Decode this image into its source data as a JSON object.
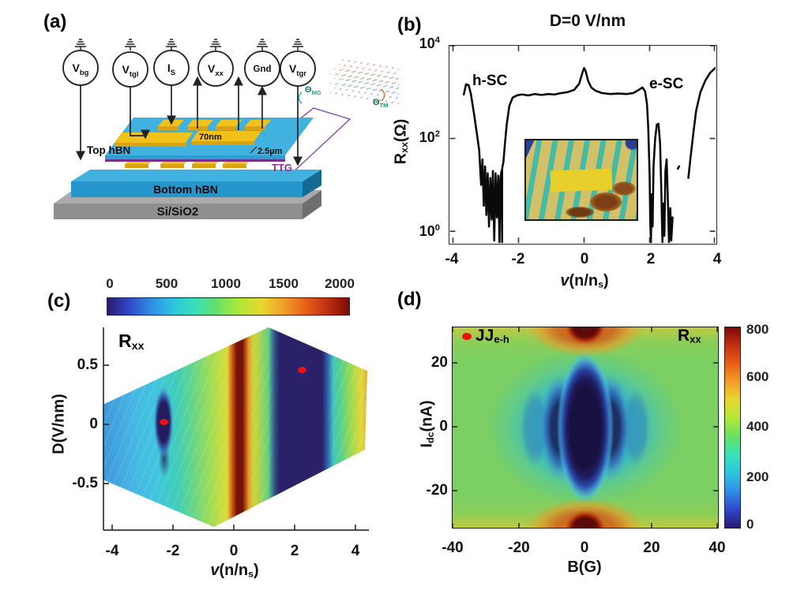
{
  "figure": {
    "panels": {
      "a": {
        "label": "(a)",
        "instruments": [
          {
            "main": "V",
            "sub": "bg"
          },
          {
            "main": "V",
            "sub": "tgl"
          },
          {
            "main": "I",
            "sub": "S"
          },
          {
            "main": "V",
            "sub": "xx"
          },
          {
            "main": "Gnd",
            "sub": ""
          },
          {
            "main": "V",
            "sub": "tgr"
          }
        ],
        "layer_labels": {
          "top_hbn": "Top hBN",
          "bottom_hbn": "Bottom hBN",
          "substrate": "Si/SiO2",
          "ttg": "TTG"
        },
        "annotations": {
          "gate_thickness": "70nm",
          "junction_length": "2.5µm",
          "twist_angles": [
            {
              "main": "Θ",
              "sub": "MG"
            },
            {
              "main": "Θ",
              "sub": "TM"
            }
          ]
        }
      },
      "b": {
        "label": "(b)",
        "title": "D=0 V/nm",
        "ylabel": {
          "main": "R",
          "sub": "xx",
          "unit": "(Ω)"
        },
        "yticks": [
          {
            "base": "10",
            "exp": "4"
          },
          {
            "base": "10",
            "exp": "2"
          },
          {
            "base": "10",
            "exp": "0"
          }
        ],
        "xticks": [
          "-4",
          "-2",
          "0",
          "2",
          "4"
        ],
        "xlabel": {
          "v": "v",
          "rest": "(n/n",
          "sub": "s",
          "post": ")"
        },
        "annotations": {
          "left": "h-SC",
          "right": "e-SC"
        }
      },
      "c": {
        "label": "(c)",
        "colorbar_ticks": [
          "0",
          "500",
          "1000",
          "1500",
          "2000"
        ],
        "map_label": {
          "main": "R",
          "sub": "xx"
        },
        "ylabel": "D(V/nm)",
        "yticks": [
          "0.5",
          "0",
          "-0.5"
        ],
        "xticks": [
          "-4",
          "-2",
          "0",
          "2",
          "4"
        ],
        "xlabel": {
          "v": "v",
          "rest": "(n/n",
          "sub": "s",
          "post": ")"
        }
      },
      "d": {
        "label": "(d)",
        "annotation": {
          "main": "JJ",
          "sub": "e-h"
        },
        "map_label": {
          "main": "R",
          "sub": "xx"
        },
        "ylabel": {
          "main": "I",
          "sub": "dc",
          "unit": "(nA)"
        },
        "yticks": [
          "20",
          "0",
          "-20"
        ],
        "xticks": [
          "-40",
          "-20",
          "0",
          "20",
          "40"
        ],
        "xlabel": "B(G)",
        "colorbar_ticks": [
          "800",
          "600",
          "400",
          "200",
          "0"
        ]
      }
    },
    "colors": {
      "colormap_low": "#2a1a6e",
      "colormap_high": "#7a0a08",
      "marker_red": "#ee1111",
      "hbn_blue": "#2596cc",
      "gold": "#f2c21a",
      "ttg_purple": "#7b2d8b",
      "substrate_gray": "#8f8f8f"
    }
  },
  "chart_data": [
    {
      "panel": "b",
      "type": "line",
      "title": "D=0 V/nm",
      "xlabel": "v(n/n_s)",
      "ylabel": "R_xx (Ω)",
      "x_range": [
        -4,
        4
      ],
      "y_scale": "log10",
      "y_range_log10": [
        -0.25,
        4
      ],
      "xticks": [
        -4,
        -2,
        0,
        2,
        4
      ],
      "yticks_ohm": [
        1,
        100,
        10000
      ],
      "annotations": [
        {
          "text": "h-SC",
          "x": -2.7,
          "log10R": 3.2
        },
        {
          "text": "e-SC",
          "x": 2.6,
          "log10R": 3.1
        }
      ],
      "series": [
        {
          "name": "Rxx_vs_filling",
          "units": [
            "v (n/ns)",
            "log10(Rxx/Ω)"
          ],
          "segments": [
            [
              [
                -3.67,
                2.95
              ],
              [
                -3.6,
                3.17
              ],
              [
                -3.52,
                3.15
              ],
              [
                -3.45,
                2.95
              ],
              [
                -3.35,
                2.5
              ],
              [
                -3.27,
                2.1
              ],
              [
                -3.2,
                1.75
              ],
              [
                -3.14,
                1.0
              ],
              [
                -3.1,
                1.55
              ],
              [
                -3.06,
                0.55
              ],
              [
                -3.02,
                1.4
              ],
              [
                -2.98,
                0.35
              ],
              [
                -2.94,
                1.25
              ],
              [
                -2.9,
                0.1
              ],
              [
                -2.86,
                1.15
              ],
              [
                -2.82,
                0.25
              ],
              [
                -2.78,
                1.3
              ],
              [
                -2.74,
                -0.2
              ],
              [
                -2.7,
                1.25
              ],
              [
                -2.66,
                0.3
              ],
              [
                -2.62,
                1.2
              ],
              [
                -2.58,
                -0.25
              ],
              [
                -2.55,
                1.15
              ],
              [
                -2.52,
                1.3
              ],
              [
                -2.5,
                -0.3
              ],
              [
                -2.5,
                1.35
              ],
              [
                -2.46,
                1.5
              ],
              [
                -2.42,
                1.85
              ],
              [
                -2.36,
                2.3
              ],
              [
                -2.28,
                2.7
              ],
              [
                -2.18,
                2.88
              ],
              [
                -2.05,
                2.93
              ],
              [
                -1.9,
                2.95
              ],
              [
                -1.7,
                2.93
              ],
              [
                -1.5,
                2.96
              ],
              [
                -1.3,
                2.94
              ],
              [
                -1.1,
                2.96
              ],
              [
                -0.9,
                2.95
              ],
              [
                -0.7,
                2.98
              ],
              [
                -0.5,
                3.0
              ],
              [
                -0.3,
                3.05
              ],
              [
                -0.15,
                3.18
              ],
              [
                -0.05,
                3.42
              ],
              [
                0.0,
                3.52
              ],
              [
                0.05,
                3.45
              ],
              [
                0.12,
                3.25
              ],
              [
                0.22,
                3.1
              ],
              [
                0.35,
                3.03
              ],
              [
                0.55,
                2.98
              ],
              [
                0.8,
                2.96
              ],
              [
                1.05,
                2.97
              ],
              [
                1.3,
                2.96
              ],
              [
                1.5,
                2.98
              ],
              [
                1.65,
                3.04
              ],
              [
                1.78,
                3.1
              ],
              [
                1.86,
                3.02
              ],
              [
                1.92,
                2.75
              ],
              [
                1.96,
                2.2
              ],
              [
                2.0,
                1.2
              ],
              [
                2.02,
                0.2
              ],
              [
                2.04,
                -0.3
              ],
              [
                2.06,
                0.8
              ],
              [
                2.09,
                0.1
              ],
              [
                2.12,
                1.4
              ],
              [
                2.17,
                2.0
              ],
              [
                2.22,
                2.3
              ],
              [
                2.27,
                2.32
              ],
              [
                2.32,
                1.9
              ],
              [
                2.36,
                0.8
              ],
              [
                2.39,
                -0.3
              ],
              [
                2.42,
                0.6
              ],
              [
                2.45,
                -0.1
              ],
              [
                2.48,
                1.3
              ],
              [
                2.52,
                1.55
              ],
              [
                2.56,
                0.6
              ],
              [
                2.59,
                -0.3
              ],
              [
                2.63,
                0.5
              ],
              [
                2.66,
                -0.2
              ],
              [
                2.7,
                0.3
              ]
            ],
            [
              [
                2.86,
                1.35
              ],
              [
                2.9,
                1.4
              ]
            ],
            [
              [
                3.18,
                1.15
              ],
              [
                3.25,
                1.6
              ],
              [
                3.33,
                2.1
              ],
              [
                3.42,
                2.6
              ],
              [
                3.55,
                3.0
              ],
              [
                3.7,
                3.25
              ],
              [
                3.85,
                3.42
              ],
              [
                3.97,
                3.5
              ],
              [
                4.0,
                3.52
              ]
            ]
          ]
        }
      ]
    },
    {
      "panel": "c",
      "type": "heatmap",
      "quantity": "R_xx (Ω)",
      "xlabel": "v(n/n_s)",
      "ylabel": "D (V/nm)",
      "x_range": [
        -4.3,
        4.4
      ],
      "y_range": [
        -0.85,
        0.8
      ],
      "xticks": [
        -4,
        -2,
        0,
        2,
        4
      ],
      "yticks": [
        0.5,
        0,
        -0.5
      ],
      "colorbar": {
        "orientation": "horizontal",
        "range": [
          0,
          2000
        ],
        "ticks": [
          0,
          500,
          1000,
          1500,
          2000
        ]
      },
      "data_region": "hexagonal composite of two gate-scan parallelograms",
      "features": [
        {
          "desc": "high-resistance band ~2000 Ω (dark red) at charge neutrality",
          "v": 0
        },
        {
          "desc": "electron-side superconducting dome, near-zero R (dark navy band)",
          "v_range": [
            1.3,
            2.8
          ]
        },
        {
          "desc": "hole-side superconducting pocket, near-zero R (dark navy ellipse)",
          "v": -2.3,
          "D_range": [
            -0.35,
            0.3
          ]
        },
        {
          "desc": "cyan-blue background ~200-400 Ω on far hole side"
        },
        {
          "desc": "green-yellow background ~500-1200 Ω between features"
        }
      ],
      "markers": [
        {
          "shape": "dot",
          "color": "red",
          "v": -2.3,
          "D": 0.05
        },
        {
          "shape": "dot",
          "color": "red",
          "v": 2.25,
          "D": 0.48
        }
      ]
    },
    {
      "panel": "d",
      "type": "heatmap",
      "quantity": "R_xx (Ω)",
      "xlabel": "B (G)",
      "ylabel": "I_dc (nA)",
      "x_range": [
        -40,
        40
      ],
      "y_range": [
        -31,
        31
      ],
      "xticks": [
        -40,
        -20,
        0,
        20,
        40
      ],
      "yticks": [
        20,
        0,
        -20
      ],
      "colorbar": {
        "orientation": "vertical",
        "range": [
          0,
          800
        ],
        "ticks": [
          800,
          600,
          400,
          200,
          0
        ]
      },
      "annotation": "JJ_e-h",
      "features": [
        {
          "desc": "central zero-resistance lobe (dark navy, Fraunhofer-like) centered at B=0, I=0",
          "B_range": [
            -8,
            8
          ],
          "I_range": [
            -17,
            17
          ]
        },
        {
          "desc": "low-resistance side lobes at |B| ≈ 10 G"
        },
        {
          "desc": "faint outer lobes at |B| ≈ 18 G"
        },
        {
          "desc": "high-resistance hot spots ~800 Ω (dark red) at B≈0, |I| ≳ 28 nA"
        },
        {
          "desc": "green-yellow background ≈ 350-450 Ω"
        }
      ]
    }
  ]
}
